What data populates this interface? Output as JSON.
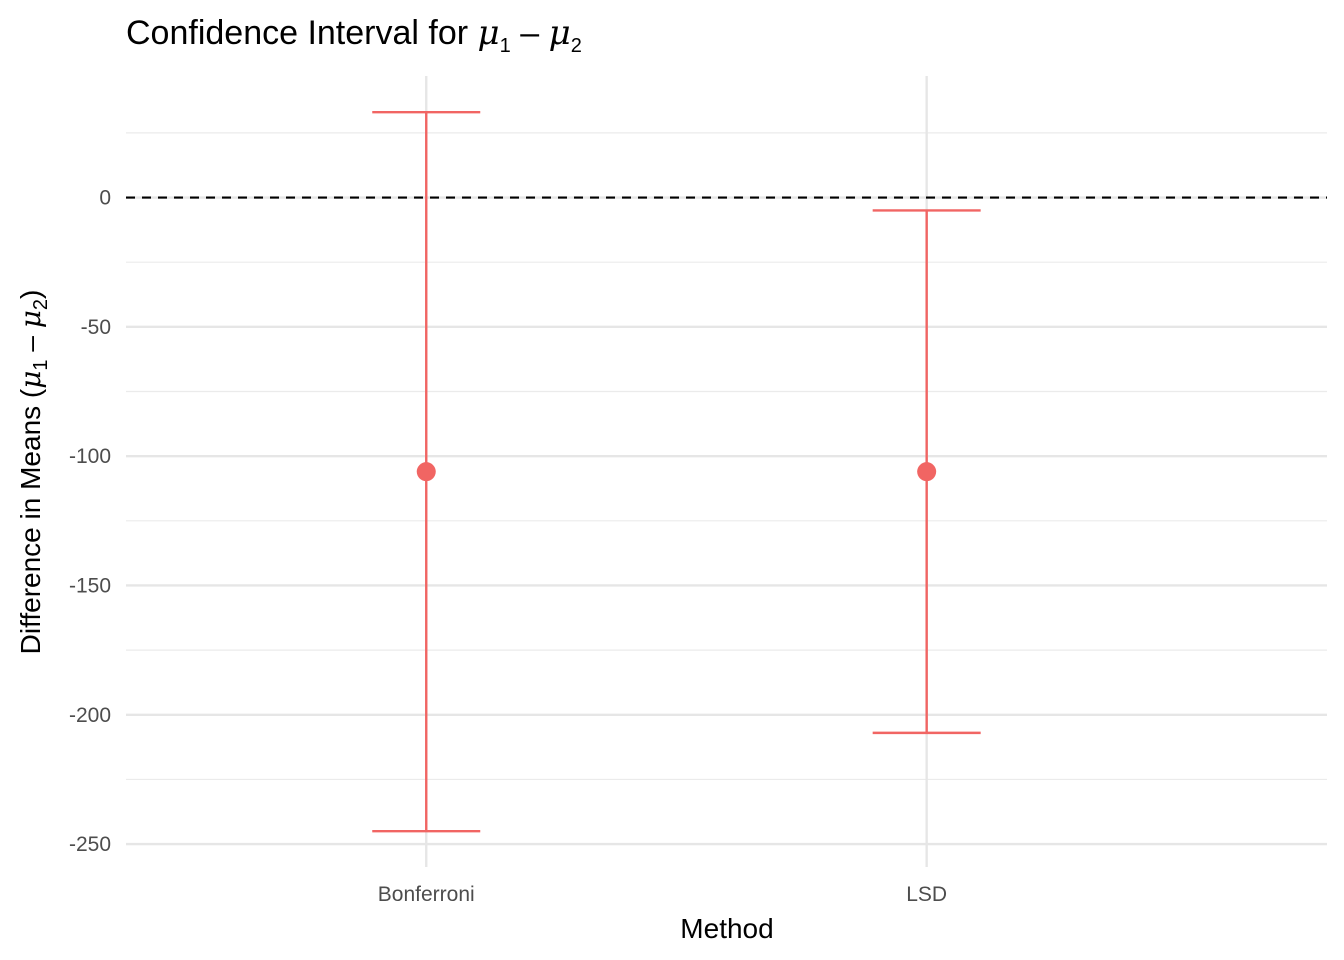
{
  "chart_data": {
    "type": "errorbar",
    "title_prefix": "Confidence Interval for ",
    "title_math": {
      "sym1": "μ",
      "sub1": "1",
      "op": " – ",
      "sym2": "μ",
      "sub2": "2"
    },
    "xlabel": "Method",
    "ylabel_prefix": "Difference in Means (",
    "ylabel_suffix": ")",
    "categories": [
      "Bonferroni",
      "LSD"
    ],
    "estimate": [
      -106,
      -106
    ],
    "lower": [
      -245,
      -207
    ],
    "upper": [
      33,
      -5
    ],
    "reference_line": {
      "y": 0,
      "style": "dashed",
      "color": "#000000"
    },
    "ylim": [
      -255,
      47
    ],
    "yticks": [
      0,
      -50,
      -100,
      -150,
      -200,
      -250
    ],
    "minor_yticks": [
      25,
      -25,
      -75,
      -125,
      -175,
      -225
    ],
    "grid": true,
    "point_color": "#f16563",
    "legend": "none"
  }
}
